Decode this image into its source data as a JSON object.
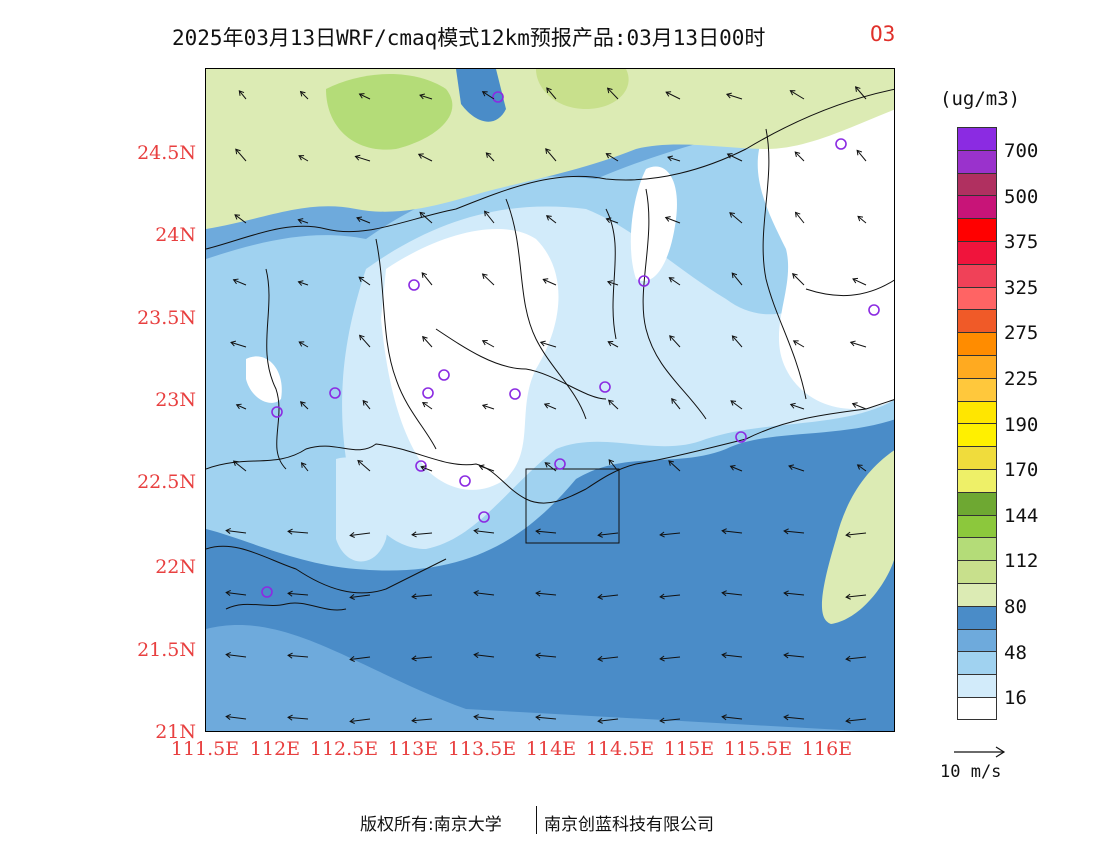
{
  "title": {
    "main": "2025年03月13日WRF/cmaq模式12km预报产品:03月13日00时",
    "species": "O3"
  },
  "axes": {
    "lat_labels": [
      "24.5N",
      "24N",
      "23.5N",
      "23N",
      "22.5N",
      "22N",
      "21.5N",
      "21N"
    ],
    "lon_labels": [
      "111.5E",
      "112E",
      "112.5E",
      "113E",
      "113.5E",
      "114E",
      "114.5E",
      "115E",
      "115.5E",
      "116E"
    ]
  },
  "legend": {
    "units": "(ug/m3)",
    "labels": [
      "700",
      "500",
      "375",
      "325",
      "275",
      "225",
      "190",
      "170",
      "144",
      "112",
      "80",
      "48",
      "16"
    ],
    "colors": [
      "#8b2be2",
      "#9a32cc",
      "#b03060",
      "#c81478",
      "#ff0000",
      "#f0143c",
      "#f04158",
      "#ff6464",
      "#f05a28",
      "#ff8c00",
      "#ffaa20",
      "#ffc83c",
      "#ffe600",
      "#fff000",
      "#f0dc3c",
      "#eef068",
      "#6ea832",
      "#8cc83c",
      "#b4dc78",
      "#c8e08c",
      "#dcebb4",
      "#4a8cc8",
      "#6eaadc",
      "#a0d2f0",
      "#d2ebfa",
      "#ffffff"
    ]
  },
  "wind_reference": "10 m/s",
  "footer": {
    "left": "版权所有:南京大学",
    "right": "南京创蓝科技有限公司"
  }
}
